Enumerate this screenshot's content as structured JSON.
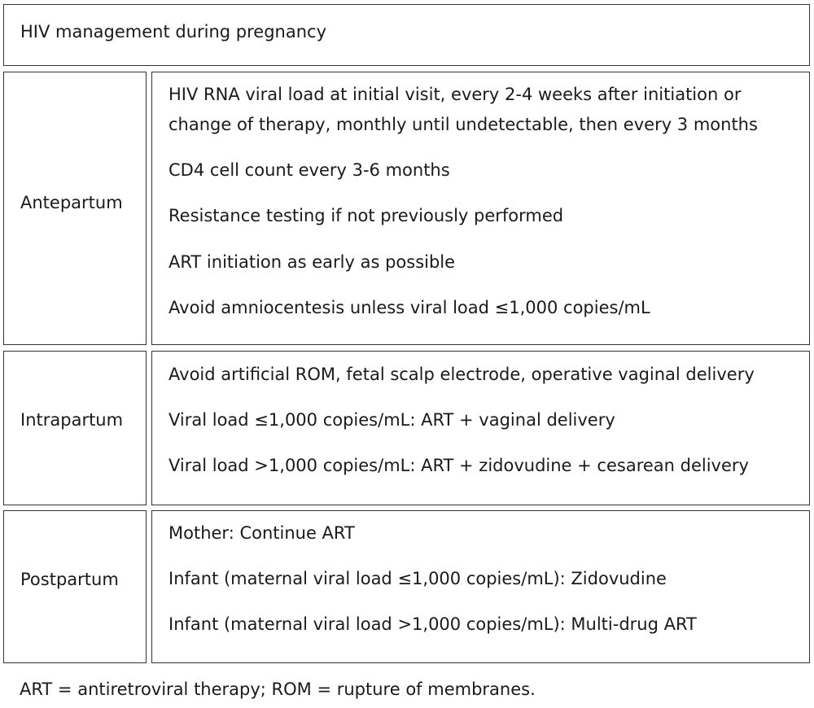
{
  "title": "HIV management during pregnancy",
  "sections": [
    {
      "label": "Antepartum",
      "items": [
        "HIV RNA viral load at initial visit, every 2-4 weeks after initiation or",
        "change of therapy, monthly until undetectable, then every 3 months",
        "CD4 cell count every 3-6 months",
        "Resistance testing if not previously performed",
        "ART initiation as early as possible",
        "Avoid amniocentesis unless viral load ≤1,000 copies/mL"
      ]
    },
    {
      "label": "Intrapartum",
      "items": [
        "Avoid artificial ROM, fetal scalp electrode, operative vaginal delivery",
        "Viral load ≤1,000 copies/mL: ART + vaginal delivery",
        "Viral load >1,000 copies/mL: ART + zidovudine + cesarean delivery"
      ]
    },
    {
      "label": "Postpartum",
      "items": [
        "Mother: Continue ART",
        "Infant (maternal viral load ≤1,000 copies/mL): Zidovudine",
        "Infant (maternal viral load >1,000 copies/mL): Multi-drug ART"
      ]
    }
  ],
  "footnote": "ART = antiretroviral therapy; ROM = rupture of membranes."
}
